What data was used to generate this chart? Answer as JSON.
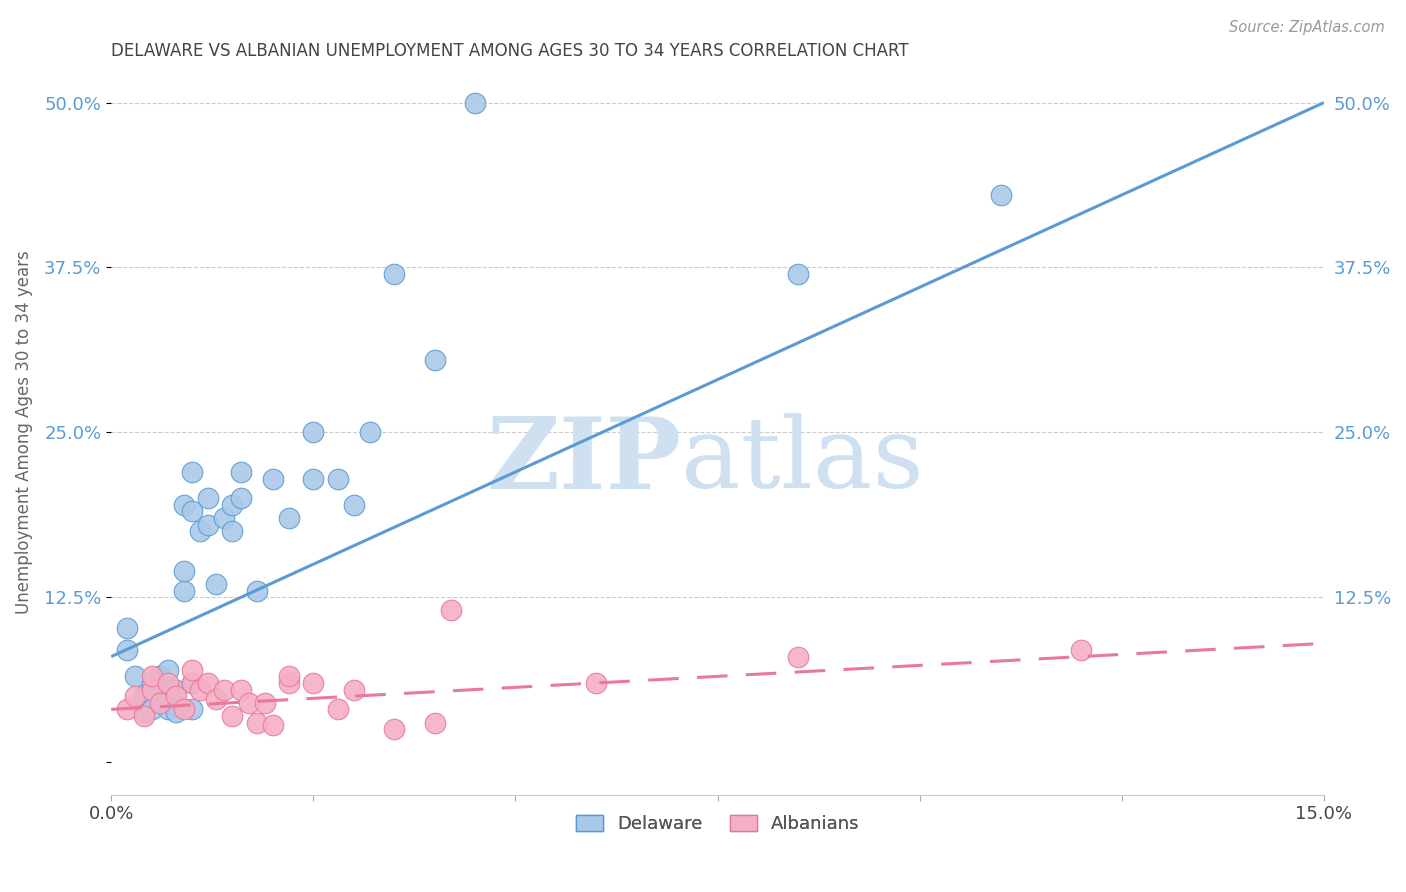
{
  "title": "DELAWARE VS ALBANIAN UNEMPLOYMENT AMONG AGES 30 TO 34 YEARS CORRELATION CHART",
  "source": "Source: ZipAtlas.com",
  "ylabel": "Unemployment Among Ages 30 to 34 years",
  "xlim": [
    0.0,
    0.15
  ],
  "ylim": [
    -0.025,
    0.525
  ],
  "yticks": [
    0.0,
    0.125,
    0.25,
    0.375,
    0.5
  ],
  "ytick_labels": [
    "",
    "12.5%",
    "25.0%",
    "37.5%",
    "50.0%"
  ],
  "xticks": [
    0.0,
    0.025,
    0.05,
    0.075,
    0.1,
    0.125,
    0.15
  ],
  "xtick_labels": [
    "0.0%",
    "",
    "",
    "",
    "",
    "",
    "15.0%"
  ],
  "delaware_color": "#aac9e8",
  "albanian_color": "#f5afc5",
  "delaware_line_color": "#5b9bd5",
  "albanian_line_color": "#e8799a",
  "watermark_zip": "ZIP",
  "watermark_atlas": "atlas",
  "watermark_color": "#cfe0f0",
  "background_color": "#ffffff",
  "title_color": "#444444",
  "axis_label_color": "#666666",
  "tick_color_y": "#5b9bd5",
  "tick_color_x": "#444444",
  "grid_color": "#cccccc",
  "delaware_x": [
    0.002,
    0.002,
    0.003,
    0.004,
    0.004,
    0.005,
    0.005,
    0.006,
    0.007,
    0.007,
    0.007,
    0.008,
    0.008,
    0.009,
    0.009,
    0.009,
    0.01,
    0.01,
    0.01,
    0.01,
    0.011,
    0.012,
    0.012,
    0.013,
    0.014,
    0.015,
    0.015,
    0.016,
    0.016,
    0.018,
    0.02,
    0.022,
    0.025,
    0.025,
    0.028,
    0.03,
    0.032,
    0.035,
    0.04,
    0.045,
    0.085,
    0.11
  ],
  "delaware_y": [
    0.085,
    0.102,
    0.065,
    0.038,
    0.05,
    0.04,
    0.06,
    0.065,
    0.04,
    0.055,
    0.07,
    0.038,
    0.055,
    0.13,
    0.145,
    0.195,
    0.04,
    0.06,
    0.19,
    0.22,
    0.175,
    0.18,
    0.2,
    0.135,
    0.185,
    0.175,
    0.195,
    0.2,
    0.22,
    0.13,
    0.215,
    0.185,
    0.215,
    0.25,
    0.215,
    0.195,
    0.25,
    0.37,
    0.305,
    0.5,
    0.37,
    0.43
  ],
  "albanian_x": [
    0.002,
    0.003,
    0.004,
    0.005,
    0.005,
    0.006,
    0.007,
    0.008,
    0.009,
    0.01,
    0.01,
    0.011,
    0.012,
    0.013,
    0.014,
    0.015,
    0.016,
    0.017,
    0.018,
    0.019,
    0.02,
    0.022,
    0.022,
    0.025,
    0.028,
    0.03,
    0.035,
    0.04,
    0.042,
    0.06,
    0.085,
    0.12
  ],
  "albanian_y": [
    0.04,
    0.05,
    0.035,
    0.055,
    0.065,
    0.045,
    0.06,
    0.05,
    0.04,
    0.06,
    0.07,
    0.055,
    0.06,
    0.048,
    0.055,
    0.035,
    0.055,
    0.045,
    0.03,
    0.045,
    0.028,
    0.06,
    0.065,
    0.06,
    0.04,
    0.055,
    0.025,
    0.03,
    0.115,
    0.06,
    0.08,
    0.085
  ]
}
